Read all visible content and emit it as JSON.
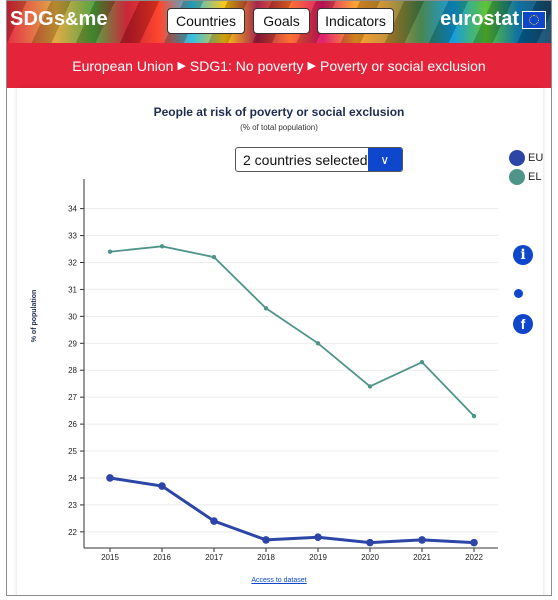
{
  "header": {
    "brand_main": "SDGs",
    "brand_amp": "&",
    "brand_tail": "me",
    "nav": [
      "Countries",
      "Goals",
      "Indicators"
    ],
    "eurostat": "eurostat"
  },
  "breadcrumb": [
    "European Union",
    "SDG1: No poverty",
    "Poverty or social exclusion"
  ],
  "chart_header": {
    "title": "People at risk of poverty or social exclusion",
    "subtitle": "(% of total population)"
  },
  "selector": {
    "value": "2 countries selected",
    "arrow": "∨"
  },
  "legend": [
    {
      "label": "EU",
      "color": "#2c45a6"
    },
    {
      "label": "EL",
      "color": "#4f9488"
    }
  ],
  "side_icons": [
    {
      "name": "info-icon",
      "glyph": "i"
    },
    {
      "name": "twitter-icon",
      "glyph": ""
    },
    {
      "name": "facebook-icon",
      "glyph": "f"
    }
  ],
  "footer": {
    "dataset_link": "Access to dataset"
  },
  "chart_data": {
    "type": "line",
    "x": [
      "2015",
      "2016",
      "2017",
      "2018",
      "2019",
      "2020",
      "2021",
      "2022"
    ],
    "ylabel": "% of population",
    "yticks": [
      22,
      23,
      24,
      25,
      26,
      27,
      28,
      29,
      30,
      31,
      32,
      33,
      34
    ],
    "ylim": [
      21.4,
      35.1
    ],
    "grid": true,
    "legend_position": "top-right",
    "series": [
      {
        "name": "EU",
        "color": "#2c45a6",
        "values": [
          24.0,
          23.7,
          22.4,
          21.7,
          21.8,
          21.6,
          21.7,
          21.6
        ]
      },
      {
        "name": "EL",
        "color": "#4f9488",
        "values": [
          32.4,
          32.6,
          32.2,
          30.3,
          29.0,
          27.4,
          28.3,
          26.3
        ]
      }
    ]
  }
}
